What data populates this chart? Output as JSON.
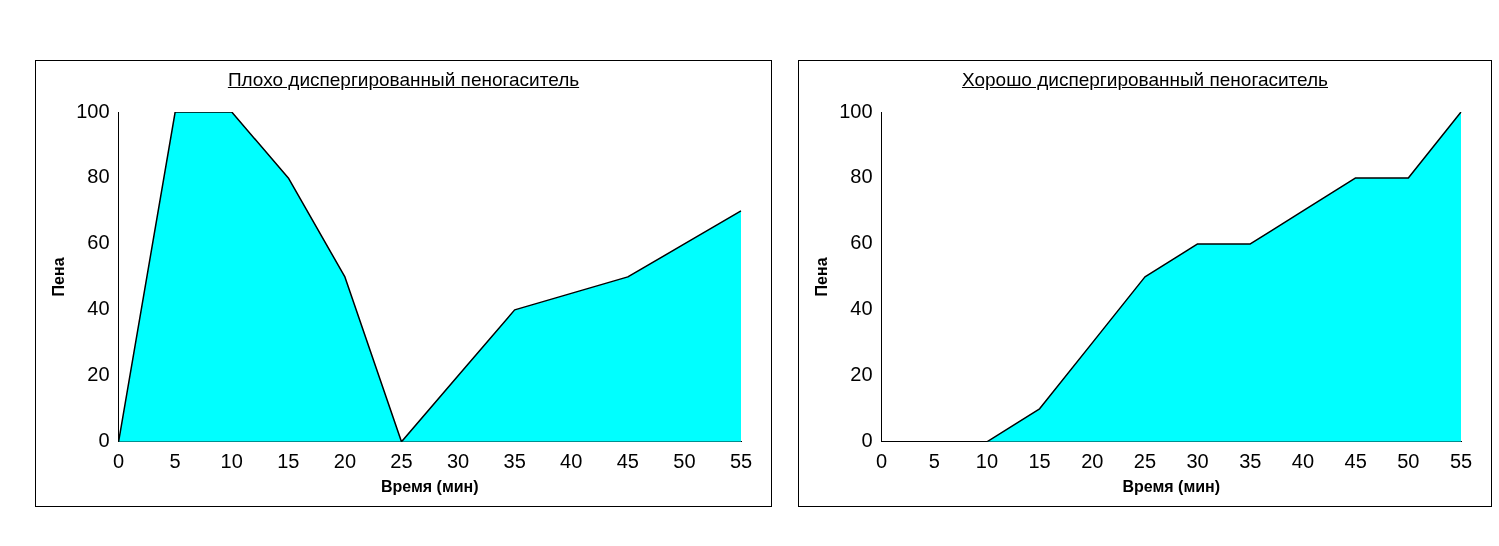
{
  "chart_data": [
    {
      "type": "area",
      "title": "Плохо диспергированный пеногаситель",
      "xlabel": "Время (мин)",
      "ylabel": "Пена",
      "categories": [
        "0",
        "5",
        "10",
        "15",
        "20",
        "25",
        "30",
        "35",
        "40",
        "45",
        "50",
        "55"
      ],
      "values": [
        0,
        100,
        100,
        80,
        50,
        0,
        20,
        40,
        45,
        50,
        60,
        70
      ],
      "color": "#00ffff",
      "ylim": [
        0,
        100
      ],
      "yticks": [
        0,
        20,
        40,
        60,
        80,
        100
      ]
    },
    {
      "type": "area",
      "title": "Хорошо диспергированный пеногаситель",
      "xlabel": "Время (мин)",
      "ylabel": "Пена",
      "categories": [
        "0",
        "5",
        "10",
        "15",
        "20",
        "25",
        "30",
        "35",
        "40",
        "45",
        "50",
        "55"
      ],
      "values": [
        0,
        0,
        0,
        10,
        30,
        50,
        60,
        60,
        70,
        80,
        80,
        100
      ],
      "color": "#00ffff",
      "ylim": [
        0,
        100
      ],
      "yticks": [
        0,
        20,
        40,
        60,
        80,
        100
      ]
    }
  ]
}
